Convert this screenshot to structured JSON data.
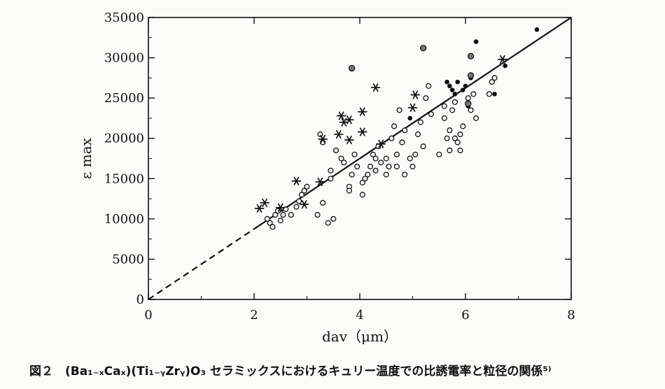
{
  "chart_data": {
    "type": "scatter",
    "xlabel": "dav（μm）",
    "ylabel": "ε max",
    "xlim": [
      0,
      8
    ],
    "ylim": [
      0,
      35000
    ],
    "x_ticks": [
      0,
      2,
      4,
      6,
      8
    ],
    "y_ticks": [
      0,
      5000,
      10000,
      15000,
      20000,
      25000,
      30000,
      35000
    ],
    "x_tick_labels": [
      "0",
      "2",
      "4",
      "6",
      "8"
    ],
    "y_tick_labels": [
      "0",
      "5000",
      "10000",
      "15000",
      "20000",
      "25000",
      "30000",
      "35000"
    ],
    "grid": false,
    "fit_line": {
      "slope": 4375,
      "intercept": 0,
      "dashed_until_x": 2.0
    },
    "series": [
      {
        "marker": "open-circle",
        "points": [
          [
            2.25,
            10000
          ],
          [
            2.3,
            9500
          ],
          [
            2.35,
            9000
          ],
          [
            2.4,
            10500
          ],
          [
            2.45,
            11000
          ],
          [
            2.5,
            9800
          ],
          [
            2.55,
            10500
          ],
          [
            2.6,
            11200
          ],
          [
            2.7,
            10500
          ],
          [
            2.8,
            11500
          ],
          [
            2.85,
            12200
          ],
          [
            2.9,
            13000
          ],
          [
            2.95,
            13500
          ],
          [
            3.0,
            14000
          ],
          [
            3.2,
            10500
          ],
          [
            3.25,
            20500
          ],
          [
            3.3,
            19500
          ],
          [
            3.3,
            12000
          ],
          [
            3.4,
            9500
          ],
          [
            3.45,
            15000
          ],
          [
            3.45,
            16000
          ],
          [
            3.5,
            10000
          ],
          [
            3.55,
            18500
          ],
          [
            3.7,
            17000
          ],
          [
            3.8,
            14000
          ],
          [
            3.8,
            13500
          ],
          [
            3.85,
            15500
          ],
          [
            3.9,
            18000
          ],
          [
            3.95,
            16500
          ],
          [
            4.05,
            14500
          ],
          [
            4.05,
            13000
          ],
          [
            4.1,
            15000
          ],
          [
            4.15,
            15500
          ],
          [
            4.2,
            16500
          ],
          [
            4.25,
            18000
          ],
          [
            4.3,
            16000
          ],
          [
            4.35,
            19000
          ],
          [
            4.4,
            17000
          ],
          [
            4.5,
            17500
          ],
          [
            4.5,
            15500
          ],
          [
            4.6,
            20000
          ],
          [
            4.65,
            21500
          ],
          [
            4.7,
            18000
          ],
          [
            4.7,
            16500
          ],
          [
            4.8,
            19500
          ],
          [
            4.85,
            15500
          ],
          [
            4.85,
            21000
          ],
          [
            4.95,
            17500
          ],
          [
            5.0,
            16500
          ],
          [
            5.05,
            18000
          ],
          [
            5.1,
            20500
          ],
          [
            5.15,
            22000
          ],
          [
            5.2,
            19000
          ],
          [
            5.25,
            25000
          ],
          [
            5.3,
            26500
          ],
          [
            5.35,
            23000
          ],
          [
            5.5,
            18000
          ],
          [
            5.6,
            22500
          ],
          [
            5.6,
            24000
          ],
          [
            5.65,
            20000
          ],
          [
            5.7,
            18500
          ],
          [
            5.7,
            21000
          ],
          [
            5.75,
            23500
          ],
          [
            5.8,
            20000
          ],
          [
            5.8,
            24500
          ],
          [
            5.85,
            19500
          ],
          [
            5.9,
            18500
          ],
          [
            5.9,
            20500
          ],
          [
            5.95,
            21500
          ],
          [
            6.05,
            25000
          ],
          [
            6.1,
            23500
          ],
          [
            6.15,
            25500
          ],
          [
            6.2,
            22500
          ],
          [
            6.45,
            25500
          ],
          [
            6.5,
            27000
          ],
          [
            6.55,
            27500
          ],
          [
            4.3,
            17500
          ],
          [
            4.55,
            16500
          ],
          [
            3.65,
            17500
          ],
          [
            4.75,
            23500
          ]
        ]
      },
      {
        "marker": "filled-dot",
        "points": [
          [
            4.95,
            22500
          ],
          [
            5.65,
            27000
          ],
          [
            5.7,
            26500
          ],
          [
            5.75,
            26000
          ],
          [
            5.8,
            25500
          ],
          [
            5.85,
            27000
          ],
          [
            5.95,
            26000
          ],
          [
            6.0,
            26500
          ],
          [
            6.05,
            24000
          ],
          [
            6.1,
            27500
          ],
          [
            6.2,
            32000
          ],
          [
            6.55,
            25500
          ],
          [
            6.75,
            29000
          ],
          [
            7.35,
            33500
          ]
        ]
      },
      {
        "marker": "dot-in-circle",
        "points": [
          [
            3.85,
            28700
          ],
          [
            5.2,
            31200
          ],
          [
            6.1,
            30200
          ],
          [
            6.1,
            27800
          ],
          [
            6.05,
            24300
          ]
        ]
      },
      {
        "marker": "asterisk",
        "points": [
          [
            2.1,
            11300
          ],
          [
            2.2,
            12000
          ],
          [
            2.5,
            11400
          ],
          [
            2.8,
            14700
          ],
          [
            2.95,
            11800
          ],
          [
            3.25,
            14600
          ],
          [
            3.3,
            19900
          ],
          [
            3.6,
            20500
          ],
          [
            3.65,
            22800
          ],
          [
            3.7,
            22000
          ],
          [
            3.8,
            22300
          ],
          [
            3.8,
            19800
          ],
          [
            4.05,
            23300
          ],
          [
            4.05,
            20800
          ],
          [
            4.3,
            26300
          ],
          [
            4.4,
            19300
          ],
          [
            5.0,
            23800
          ],
          [
            5.05,
            25400
          ],
          [
            6.7,
            29800
          ]
        ]
      }
    ]
  },
  "caption": "図２　(Ba₁₋ₓCaₓ)(Ti₁₋ᵧZrᵧ)O₃ セラミックスにおけるキュリー温度での比誘電率と粒径の関係⁵⁾"
}
